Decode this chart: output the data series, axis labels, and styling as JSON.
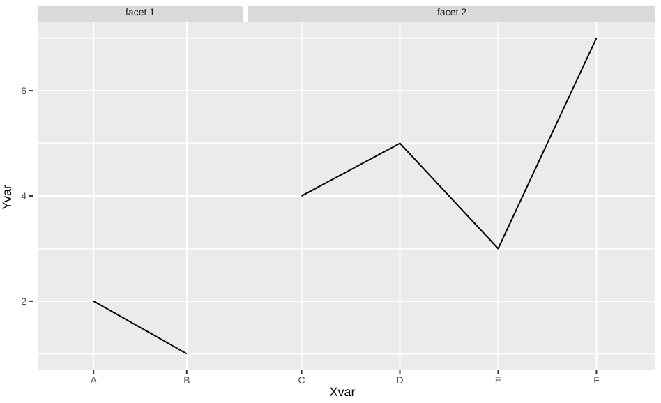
{
  "chart_data": [
    {
      "type": "line",
      "title": "facet 1",
      "ylabel": "Yvar",
      "categories": [
        "A",
        "B"
      ],
      "values": [
        2,
        1
      ],
      "color": "#000000",
      "ylim": [
        0.7,
        7.3
      ],
      "yticks": [
        {
          "value": 1,
          "label": null
        },
        2,
        {
          "value": 3,
          "label": null
        },
        4,
        {
          "value": 5,
          "label": null
        },
        6,
        {
          "value": 7,
          "label": null
        }
      ],
      "grid": true
    },
    {
      "type": "line",
      "title": "facet 2",
      "xlabel": "Xvar",
      "categories": [
        "C",
        "D",
        "E",
        "F"
      ],
      "values": [
        4,
        5,
        3,
        7
      ],
      "color": "#000000",
      "ylim": [
        0.7,
        7.3
      ],
      "yticks": [
        {
          "value": 1,
          "label": null
        },
        2,
        {
          "value": 3,
          "label": null
        },
        4,
        {
          "value": 5,
          "label": null
        },
        6,
        {
          "value": 7,
          "label": null
        }
      ],
      "grid": true,
      "tick_labels": "x"
    }
  ]
}
